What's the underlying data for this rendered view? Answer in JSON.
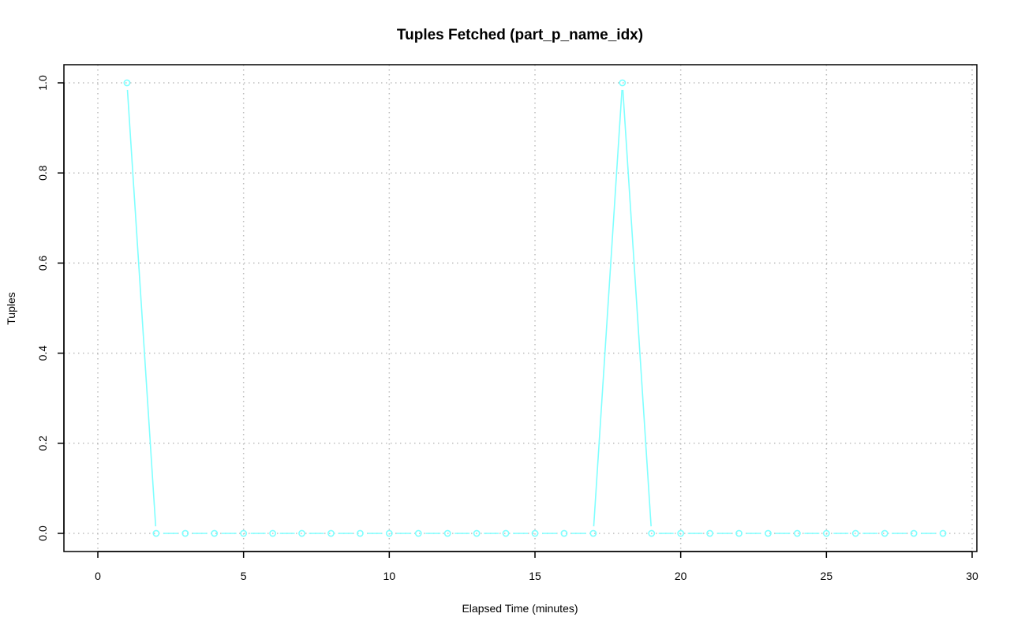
{
  "chart_data": {
    "type": "line",
    "title": "Tuples Fetched (part_p_name_idx)",
    "xlabel": "Elapsed Time (minutes)",
    "ylabel": "Tuples",
    "xlim": [
      0,
      30
    ],
    "ylim": [
      0.0,
      1.0
    ],
    "x_ticks": [
      0,
      5,
      10,
      15,
      20,
      25,
      30
    ],
    "y_ticks": [
      "0.0",
      "0.2",
      "0.4",
      "0.6",
      "0.8",
      "1.0"
    ],
    "grid": true,
    "series": [
      {
        "color": "#7fffff",
        "marker": "open-circle",
        "x": [
          1,
          2,
          3,
          4,
          5,
          6,
          7,
          8,
          9,
          10,
          11,
          12,
          13,
          14,
          15,
          16,
          17,
          18,
          19,
          20,
          21,
          22,
          23,
          24,
          25,
          26,
          27,
          28,
          29
        ],
        "y": [
          1,
          0,
          0,
          0,
          0,
          0,
          0,
          0,
          0,
          0,
          0,
          0,
          0,
          0,
          0,
          0,
          0,
          1,
          0,
          0,
          0,
          0,
          0,
          0,
          0,
          0,
          0,
          0,
          0
        ]
      }
    ]
  }
}
